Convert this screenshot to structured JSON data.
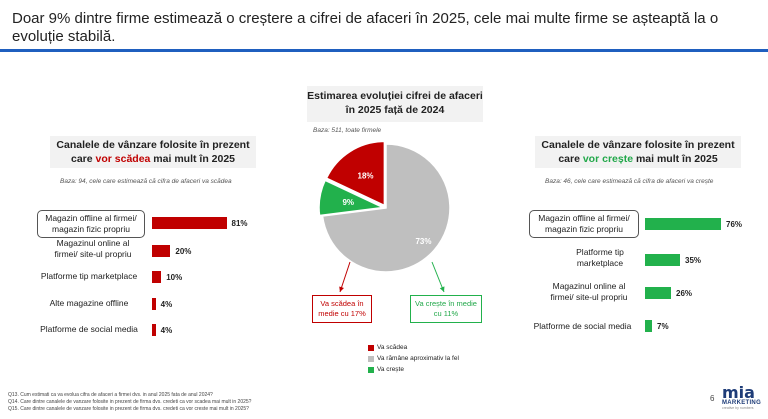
{
  "title": "Doar 9% dintre firme estimează o creștere a cifrei de afaceri în 2025, cele mai multe firme se așteaptă la o evoluție stabilă.",
  "left_panel": {
    "heading_pre": "Canalele de vânzare folosite în prezent care ",
    "heading_highlight": "vor scădea",
    "heading_post": " mai mult în 2025",
    "base": "Baza: 94, cele care estimează că cifra de afaceri va scădea",
    "color": "#c00000"
  },
  "center_panel": {
    "heading": "Estimarea evoluției cifrei de afaceri în 2025 față de 2024",
    "base": "Baza: 511, toate firmele",
    "callout_down": "Va scădea în medie cu 17%",
    "callout_up": "Va crește în medie cu 11%"
  },
  "right_panel": {
    "heading_pre": "Canalele de vânzare folosite în prezent care ",
    "heading_highlight": "vor crește",
    "heading_post": " mai mult în 2025",
    "base": "Baza: 46, cele care estimează că cifra de afaceri va crește",
    "color": "#22b14c"
  },
  "chart_data": [
    {
      "type": "bar",
      "orientation": "horizontal",
      "categories": [
        "Magazin offline al firmei/ magazin fizic propriu",
        "Magazinul online al firmei/ site-ul propriu",
        "Platforme tip marketplace",
        "Alte magazine offline",
        "Platforme de social media"
      ],
      "values": [
        81,
        20,
        10,
        4,
        4
      ],
      "value_labels": [
        "81%",
        "20%",
        "10%",
        "4%",
        "4%"
      ],
      "unit": "%"
    },
    {
      "type": "pie",
      "categories": [
        "Va scădea",
        "Va rămâne aproximativ la fel",
        "Va crește"
      ],
      "values": [
        18,
        73,
        9
      ],
      "value_labels": [
        "18%",
        "73%",
        "9%"
      ],
      "colors": [
        "#c00000",
        "#bfbfbf",
        "#22b14c"
      ],
      "legend_position": "bottom"
    },
    {
      "type": "bar",
      "orientation": "horizontal",
      "categories": [
        "Magazin offline al firmei/ magazin fizic propriu",
        "Platforme tip marketplace",
        "Magazinul online al firmei/ site-ul propriu",
        "Platforme de social media"
      ],
      "values": [
        76,
        35,
        26,
        7
      ],
      "value_labels": [
        "76%",
        "35%",
        "26%",
        "7%"
      ],
      "unit": "%"
    }
  ],
  "footnotes": [
    "Q13. Cum estimati ca va evolua cifra de afaceri a firmei dvs. in anul 2025 fata de anul 2024?",
    "Q14. Care dintre canalele de vanzare folosite in prezent de firma dvs. credeti ca vor scadea mai mult in 2025?",
    "Q15. Care dintre canalele de vanzare folosite in prezent de firma dvs. credeti ca vor creste mai mult in 2025?"
  ],
  "page_number": "6",
  "logo": {
    "main": "mia",
    "sub": "MARKETING",
    "tag": "creative by numbers"
  }
}
